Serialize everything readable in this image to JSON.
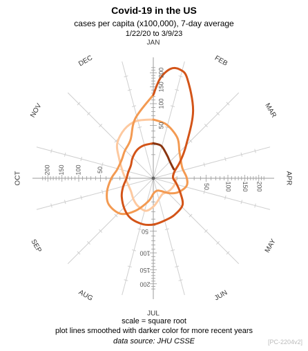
{
  "header": {
    "title": "Covid-19 in the US",
    "subtitle": "cases per capita (x100,000), 7-day average",
    "date_range": "1/22/20 to 3/9/23"
  },
  "footer": {
    "note_scale": "scale = square root",
    "note_lines": "plot lines smoothed with darker color for more recent years",
    "source": "data source: JHU CSSE",
    "code": "[PC-2204v2]"
  },
  "colors": {
    "axis": "#9a9a9a",
    "spoke": "#cfcfcf",
    "label": "#555555",
    "series_2020": "#fdc9a0",
    "series_2021": "#f39a52",
    "series_2022": "#d35418",
    "series_2023": "#8a3510"
  },
  "chart_data": {
    "type": "line",
    "polar": true,
    "scale": "sqrt",
    "rmax": 225,
    "ticks": [
      50,
      100,
      150,
      200
    ],
    "tick_labels": [
      "50",
      "100",
      "150",
      "200"
    ],
    "months": [
      "JAN",
      "FEB",
      "MAR",
      "APR",
      "MAY",
      "JUN",
      "JUL",
      "AUG",
      "SEP",
      "OCT",
      "NOV",
      "DEC"
    ],
    "grid": true,
    "series": [
      {
        "color": "#fdc9a0",
        "x": [
          "2020-04-01",
          "2020-04-15",
          "2020-05-01",
          "2020-05-15",
          "2020-06-01",
          "2020-06-15",
          "2020-07-01",
          "2020-07-15",
          "2020-08-01",
          "2020-08-15",
          "2020-09-01",
          "2020-09-15",
          "2020-10-01",
          "2020-10-15",
          "2020-11-01",
          "2020-11-15",
          "2020-12-01",
          "2020-12-15",
          "2021-01-01"
        ],
        "values": [
          9,
          9,
          8,
          7,
          6,
          8,
          14,
          20,
          18,
          15,
          12,
          12,
          14,
          18,
          28,
          45,
          58,
          64,
          62
        ]
      },
      {
        "color": "#f39a52",
        "x": [
          "2021-01-01",
          "2021-01-15",
          "2021-02-01",
          "2021-02-15",
          "2021-03-01",
          "2021-03-15",
          "2021-04-01",
          "2021-04-15",
          "2021-05-01",
          "2021-05-15",
          "2021-06-01",
          "2021-06-15",
          "2021-07-01",
          "2021-07-15",
          "2021-08-01",
          "2021-08-15",
          "2021-09-01",
          "2021-09-15",
          "2021-10-01",
          "2021-10-15",
          "2021-11-01",
          "2021-11-15",
          "2021-12-01",
          "2021-12-15",
          "2022-01-01"
        ],
        "values": [
          62,
          55,
          40,
          25,
          19,
          17,
          20,
          21,
          15,
          9,
          4,
          3,
          4,
          10,
          25,
          42,
          48,
          42,
          32,
          25,
          24,
          28,
          36,
          70,
          125
        ]
      },
      {
        "color": "#d35418",
        "x": [
          "2022-01-01",
          "2022-01-05",
          "2022-01-10",
          "2022-01-15",
          "2022-01-20",
          "2022-02-01",
          "2022-02-15",
          "2022-03-01",
          "2022-03-15",
          "2022-04-01",
          "2022-04-15",
          "2022-05-01",
          "2022-05-15",
          "2022-06-01",
          "2022-06-15",
          "2022-07-01",
          "2022-07-15",
          "2022-08-01",
          "2022-08-15",
          "2022-09-01",
          "2022-09-15",
          "2022-10-01",
          "2022-10-15",
          "2022-11-01",
          "2022-11-15",
          "2022-12-01",
          "2022-12-15",
          "2023-01-01"
        ],
        "values": [
          125,
          180,
          220,
          225,
          200,
          110,
          40,
          18,
          9,
          7,
          10,
          17,
          28,
          32,
          34,
          38,
          40,
          38,
          32,
          24,
          18,
          13,
          12,
          12,
          15,
          19,
          21,
          22
        ]
      },
      {
        "color": "#8a3510",
        "x": [
          "2023-01-01",
          "2023-01-15",
          "2023-02-01",
          "2023-02-15",
          "2023-03-01",
          "2023-03-09"
        ],
        "values": [
          22,
          20,
          13,
          10,
          9,
          9
        ]
      }
    ]
  }
}
